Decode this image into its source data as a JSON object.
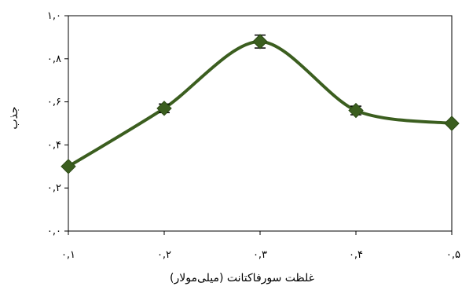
{
  "chart_data": {
    "type": "line",
    "title": "",
    "xlabel": "غلظت سورفاکتانت (میلی‌مولار)",
    "ylabel": "جذب",
    "x_tick_labels": [
      "۰,۱",
      "۰,۲",
      "۰,۳",
      "۰,۴",
      "۰,۵"
    ],
    "y_tick_labels": [
      "۰,۰",
      "۰,۲",
      "۰,۴",
      "۰,۶",
      "۰,۸",
      "۱,۰"
    ],
    "xlim": [
      0.1,
      0.5
    ],
    "ylim": [
      0,
      1.0
    ],
    "grid": false,
    "smooth": true,
    "series": [
      {
        "x": [
          0.1,
          0.2,
          0.3,
          0.4,
          0.5
        ],
        "values": [
          0.3,
          0.57,
          0.88,
          0.56,
          0.5
        ],
        "error": [
          0.005,
          0.02,
          0.03,
          0.02,
          0.005
        ],
        "color": "#3b5e1f",
        "marker": "diamond"
      }
    ]
  }
}
